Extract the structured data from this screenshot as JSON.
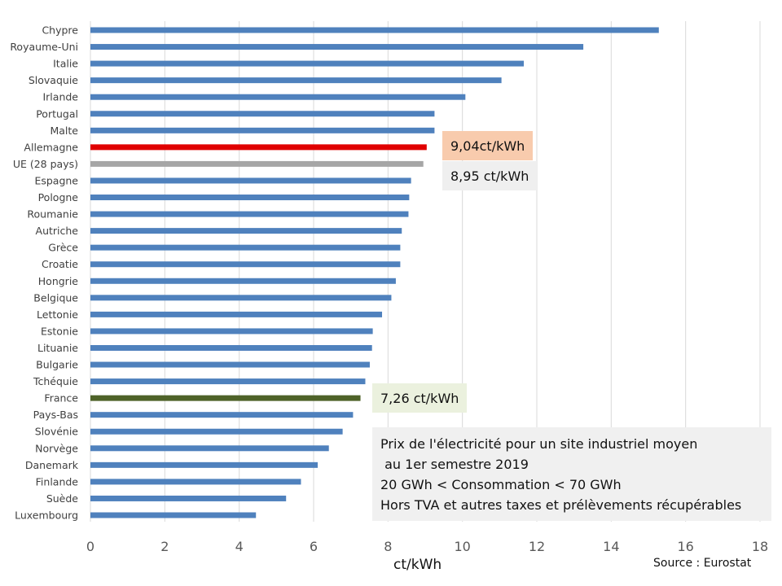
{
  "chart_data": {
    "type": "bar",
    "orientation": "horizontal",
    "categories": [
      "Chypre",
      "Royaume-Uni",
      "Italie",
      "Slovaquie",
      "Irlande",
      "Portugal",
      "Malte",
      "Allemagne",
      "UE (28 pays)",
      "Espagne",
      "Pologne",
      "Roumanie",
      "Autriche",
      "Grèce",
      "Croatie",
      "Hongrie",
      "Belgique",
      "Lettonie",
      "Estonie",
      "Lituanie",
      "Bulgarie",
      "Tchéquie",
      "France",
      "Pays-Bas",
      "Slovénie",
      "Norvège",
      "Danemark",
      "Finlande",
      "Suède",
      "Luxembourg"
    ],
    "values": [
      15.28,
      13.25,
      11.65,
      11.05,
      10.08,
      9.25,
      9.25,
      9.04,
      8.95,
      8.62,
      8.57,
      8.55,
      8.37,
      8.33,
      8.33,
      8.21,
      8.09,
      7.84,
      7.59,
      7.57,
      7.51,
      7.39,
      7.26,
      7.06,
      6.78,
      6.41,
      6.11,
      5.66,
      5.26,
      4.45
    ],
    "highlight": {
      "Allemagne": "#e00000",
      "UE (28 pays)": "#a6a6a6",
      "France": "#4e6228"
    },
    "default_color": "#4f81bd",
    "xlim": [
      0,
      18
    ],
    "xticks": [
      "0",
      "2",
      "4",
      "6",
      "8",
      "10",
      "12",
      "14",
      "16",
      "18"
    ],
    "grid": "vertical",
    "xlabel": "ct/kWh",
    "ylabel": "",
    "title": ""
  },
  "callouts": {
    "allemagne": {
      "text": "9,04ct/kWh",
      "bg": "#f8cbad"
    },
    "ue": {
      "text": "8,95 ct/kWh",
      "bg": "#efefef"
    },
    "france": {
      "text": "7,26 ct/kWh",
      "bg": "#ebf1de"
    }
  },
  "note": {
    "line1": "Prix de l'électricité pour un site industriel moyen",
    "line2": " au 1er semestre 2019",
    "line3": "20 GWh < Consommation < 70 GWh",
    "line4": "Hors TVA et autres taxes et prélèvements récupérables"
  },
  "source": "Source : Eurostat"
}
